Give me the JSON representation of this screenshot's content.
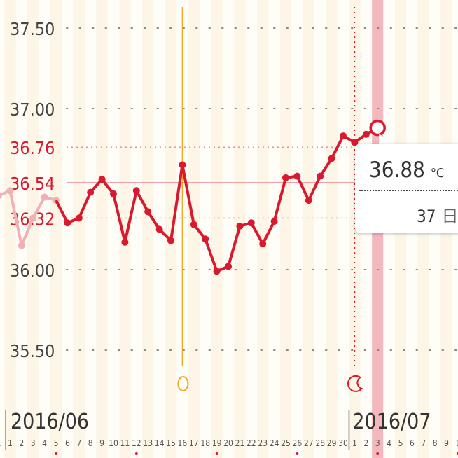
{
  "chart_data": {
    "type": "line",
    "ylim": [
      35.3,
      37.65
    ],
    "y_ticks": [
      "37.50",
      "37.00",
      "36.00",
      "35.50"
    ],
    "reference_lines": [
      {
        "value": 36.76,
        "label": "36.76",
        "style": "dotted"
      },
      {
        "value": 36.54,
        "label": "36.54",
        "style": "solid"
      },
      {
        "value": 36.32,
        "label": "36.32",
        "style": "dotted"
      }
    ],
    "month_labels": [
      "2016/06",
      "2016/07"
    ],
    "x_tick_labels": [
      "1",
      "1",
      "2",
      "3",
      "4",
      "5",
      "6",
      "7",
      "8",
      "9",
      "10",
      "11",
      "12",
      "13",
      "14",
      "15",
      "16",
      "17",
      "18",
      "19",
      "20",
      "21",
      "22",
      "23",
      "24",
      "25",
      "26",
      "27",
      "28",
      "29",
      "30",
      "1",
      "2",
      "3",
      "4",
      "5",
      "6",
      "7",
      "8",
      "9",
      "1"
    ],
    "sunday_marked_days": [
      "2016-06-05",
      "2016-06-12",
      "2016-06-19",
      "2016-06-26",
      "2016-07-03",
      "2016-07-10"
    ],
    "series": [
      {
        "role": "previous-cycle",
        "color": "#f0b0b4",
        "x": [
          "2016-05-31",
          "2016-06-01",
          "2016-06-02",
          "2016-06-03",
          "2016-06-04",
          "2016-06-05"
        ],
        "values": [
          36.46,
          36.49,
          36.15,
          36.32,
          36.45,
          36.43
        ]
      },
      {
        "role": "current-cycle",
        "color": "#d9192e",
        "x": [
          "2016-06-06",
          "2016-06-07",
          "2016-06-08",
          "2016-06-09",
          "2016-06-10",
          "2016-06-11",
          "2016-06-12",
          "2016-06-13",
          "2016-06-14",
          "2016-06-15",
          "2016-06-16",
          "2016-06-17",
          "2016-06-18",
          "2016-06-19",
          "2016-06-20",
          "2016-06-21",
          "2016-06-22",
          "2016-06-23",
          "2016-06-24",
          "2016-06-25",
          "2016-06-26",
          "2016-06-27",
          "2016-06-28",
          "2016-06-29",
          "2016-06-30",
          "2016-07-01",
          "2016-07-02",
          "2016-07-03"
        ],
        "values": [
          36.29,
          36.32,
          36.48,
          36.56,
          36.47,
          36.17,
          36.49,
          36.36,
          36.25,
          36.18,
          36.65,
          36.28,
          36.19,
          35.99,
          36.02,
          36.27,
          36.29,
          36.16,
          36.3,
          36.57,
          36.58,
          36.43,
          36.58,
          36.69,
          36.83,
          36.79,
          36.84,
          36.88
        ]
      }
    ],
    "markers": [
      {
        "date": "2016-06-16",
        "icon": "ovulation-circle-icon",
        "color": "#f5a623"
      },
      {
        "date": "2016-07-01",
        "icon": "crescent-moon-icon",
        "color": "#d9192e"
      }
    ],
    "selected_date": "2016-07-03",
    "grid": true
  },
  "tooltip": {
    "temperature": "36.88",
    "unit": "°C",
    "days": "37",
    "days_unit": "日"
  },
  "colors": {
    "accent": "#d9192e",
    "ovulation": "#f5a623",
    "selection": "#f2b8bd"
  }
}
